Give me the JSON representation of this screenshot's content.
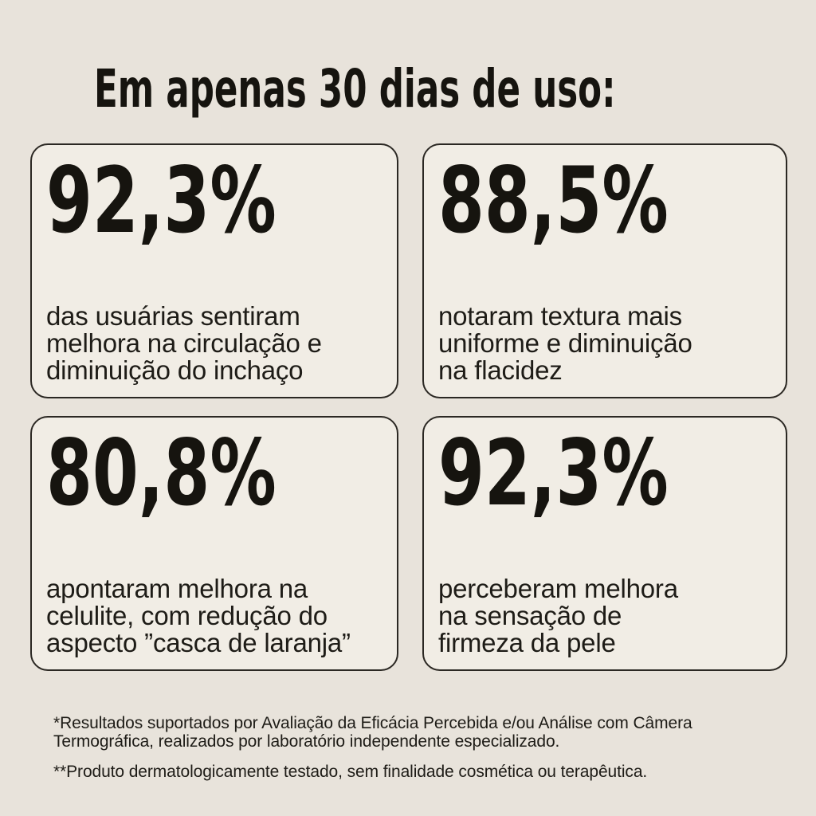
{
  "title": "Em apenas 30 dias de uso:",
  "cards": [
    {
      "value": "92,3%",
      "description": "das usuárias sentiram\nmelhora na circulação e\ndiminuição do inchaço"
    },
    {
      "value": "88,5%",
      "description": "notaram textura mais\nuniforme e diminuição\nna flacidez"
    },
    {
      "value": "80,8%",
      "description": "apontaram melhora na\ncelulite, com redução do\naspecto ”casca de laranja”"
    },
    {
      "value": "92,3%",
      "description": "perceberam melhora\nna sensação de\nfirmeza da pele"
    }
  ],
  "footnotes": {
    "note1": "*Resultados suportados por Avaliação da Eficácia Percebida e/ou Análise com Câmera\nTermográfica, realizados por laboratório independente especializado.",
    "note2": "**Produto dermatologicamente testado, sem finalidade cosmética ou terapêutica."
  },
  "colors": {
    "background": "#E8E3DB",
    "card_background": "#F1EDE5",
    "border": "#2B2823",
    "heading_ink": "#16140F",
    "body_ink": "#1E1C17"
  }
}
